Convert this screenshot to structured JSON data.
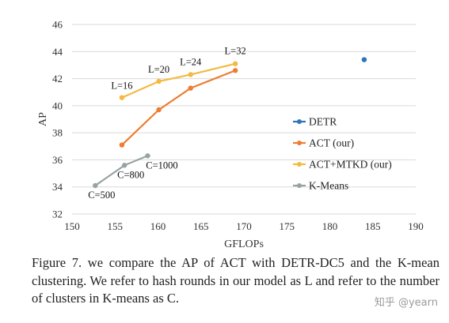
{
  "chart_data": {
    "type": "line",
    "xlabel": "GFLOPs",
    "ylabel": "AP",
    "xlim": [
      150,
      190
    ],
    "ylim": [
      32,
      46
    ],
    "xticks": [
      150,
      155,
      160,
      165,
      170,
      175,
      180,
      185,
      190
    ],
    "yticks": [
      32,
      34,
      36,
      38,
      40,
      42,
      44,
      46
    ],
    "grid": "horizontal",
    "legend_position": "right",
    "series": [
      {
        "name": "DETR",
        "color": "#2e75b6",
        "style": "scatter",
        "points": [
          {
            "x": 184,
            "y": 43.4
          }
        ],
        "labels": []
      },
      {
        "name": "ACT (our)",
        "color": "#ed7d31",
        "style": "line",
        "points": [
          {
            "x": 155.8,
            "y": 37.1
          },
          {
            "x": 160.1,
            "y": 39.7
          },
          {
            "x": 163.8,
            "y": 41.3
          },
          {
            "x": 169.0,
            "y": 42.6
          }
        ],
        "labels": []
      },
      {
        "name": "ACT+MTKD (our)",
        "color": "#f5b942",
        "style": "line",
        "points": [
          {
            "x": 155.8,
            "y": 40.6
          },
          {
            "x": 160.1,
            "y": 41.8
          },
          {
            "x": 163.8,
            "y": 42.3
          },
          {
            "x": 169.0,
            "y": 43.1
          }
        ],
        "labels": [
          "L=16",
          "L=20",
          "L=24",
          "L=32"
        ]
      },
      {
        "name": "K-Means",
        "color": "#97a3a3",
        "style": "line",
        "points": [
          {
            "x": 152.7,
            "y": 34.1
          },
          {
            "x": 156.1,
            "y": 35.6
          },
          {
            "x": 158.8,
            "y": 36.3
          }
        ],
        "labels": [
          "C=500",
          "C=800",
          "C=1000"
        ]
      }
    ]
  },
  "caption": "Figure 7. we compare the AP of ACT with DETR-DC5 and the K-mean clustering. We refer to hash rounds in our model as L and refer to the number of clusters in K-means as C.",
  "watermark": "知乎 @yearn"
}
